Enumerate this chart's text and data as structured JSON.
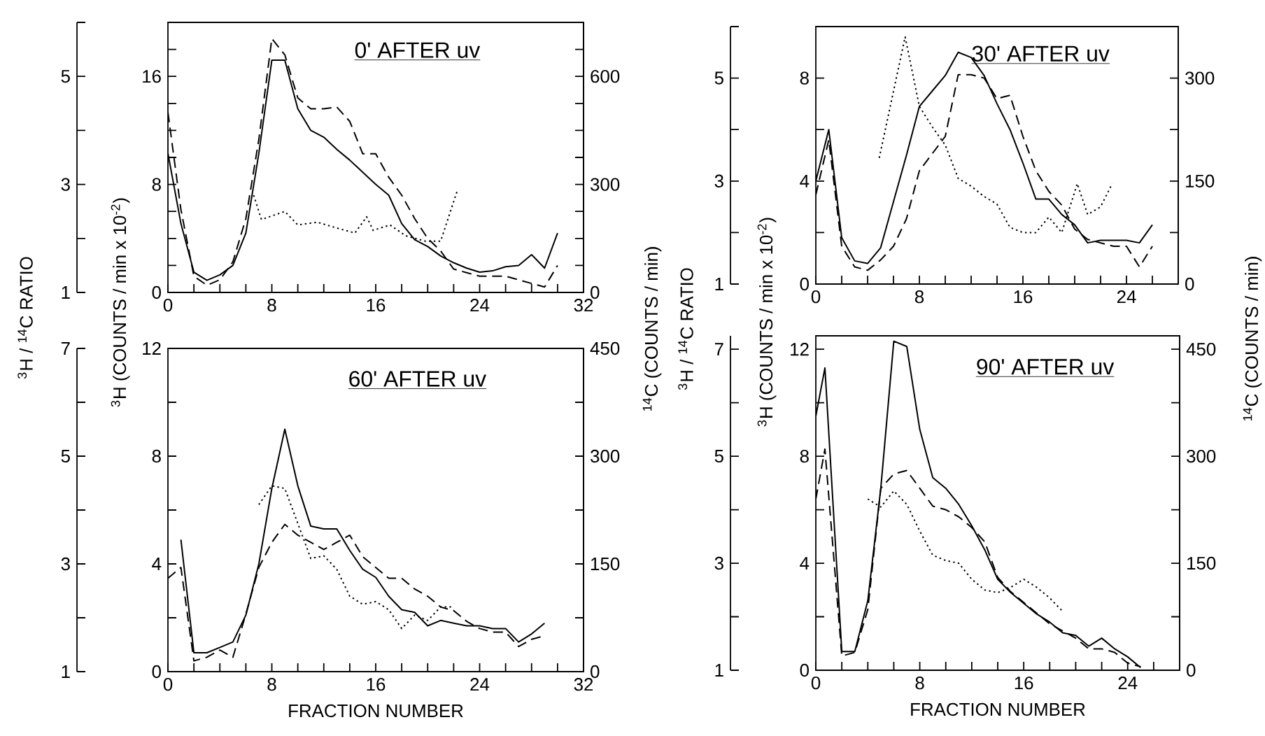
{
  "chart_data": [
    {
      "type": "line",
      "title": "0' AFTER uv",
      "ylabel": "$^{3}$H (COUNTS / min x 10$^{-2}$)",
      "y2label": "$^{14}$C (COUNTS / min)",
      "y3label": "$^{3}$H / $^{14}$C RATIO",
      "xlim": [
        0,
        32
      ],
      "xticks": [
        0,
        {
          "value": 2,
          "label": null
        },
        {
          "value": 4,
          "label": null
        },
        {
          "value": 6,
          "label": null
        },
        8,
        {
          "value": 10,
          "label": null
        },
        {
          "value": 12,
          "label": null
        },
        {
          "value": 14,
          "label": null
        },
        16,
        {
          "value": 18,
          "label": null
        },
        {
          "value": 20,
          "label": null
        },
        {
          "value": 22,
          "label": null
        },
        24,
        {
          "value": 26,
          "label": null
        },
        {
          "value": 28,
          "label": null
        },
        {
          "value": 30,
          "label": null
        },
        32
      ],
      "ylim": [
        0,
        20
      ],
      "yticks": [
        0,
        {
          "value": 2,
          "label": null
        },
        {
          "value": 4,
          "label": null
        },
        {
          "value": 6,
          "label": null
        },
        8,
        {
          "value": 10,
          "label": null
        },
        {
          "value": 12,
          "label": null
        },
        {
          "value": 14,
          "label": null
        },
        16,
        {
          "value": 18,
          "label": null
        }
      ],
      "y2lim": [
        0,
        750
      ],
      "y2ticks": [
        0,
        {
          "value": 75,
          "label": null
        },
        {
          "value": 150,
          "label": null
        },
        {
          "value": 225,
          "label": null
        },
        300,
        {
          "value": 375,
          "label": null
        },
        {
          "value": 450,
          "label": null
        },
        {
          "value": 525,
          "label": null
        },
        600,
        {
          "value": 675,
          "label": null
        }
      ],
      "y3lim": [
        1,
        6
      ],
      "y3ticks": [
        1,
        {
          "value": 2,
          "label": null
        },
        3,
        {
          "value": 4,
          "label": null
        },
        5,
        {
          "value": 6,
          "label": null
        }
      ],
      "series": [
        {
          "color": "#000000",
          "line_style": "solid",
          "axis": "y",
          "x": [
            0,
            1,
            2,
            3,
            4,
            5,
            6,
            7,
            8,
            9,
            10,
            11,
            12,
            13,
            14,
            15,
            16,
            17,
            18,
            19,
            20,
            21,
            22,
            23,
            24,
            25,
            26,
            27,
            28,
            29,
            30
          ],
          "values": [
            10.3,
            5.1,
            1.5,
            0.9,
            1.3,
            2.0,
            4.4,
            10.3,
            17.2,
            17.2,
            13.6,
            12.0,
            11.5,
            10.6,
            9.8,
            8.9,
            8.0,
            7.2,
            5.1,
            3.9,
            3.4,
            2.7,
            2.2,
            1.8,
            1.5,
            1.6,
            1.9,
            2.0,
            2.8,
            1.8,
            4.4
          ]
        },
        {
          "color": "#000000",
          "line_style": "dashed",
          "axis": "y2",
          "x": [
            0,
            1,
            2,
            3,
            4,
            5,
            6,
            7,
            8,
            9,
            10,
            11,
            12,
            13,
            14,
            15,
            16,
            17,
            18,
            19,
            20,
            21,
            22,
            23,
            24,
            25,
            26,
            27,
            28,
            29,
            30
          ],
          "values": [
            500,
            230,
            45,
            20,
            35,
            85,
            205,
            425,
            705,
            660,
            540,
            510,
            510,
            515,
            475,
            385,
            385,
            320,
            270,
            205,
            150,
            115,
            65,
            55,
            45,
            45,
            45,
            35,
            25,
            15,
            75
          ]
        },
        {
          "color": "#000000",
          "line_style": "dotted",
          "axis": "y3",
          "x": [
            6.6,
            7.2,
            9,
            10,
            11.5,
            12.9,
            14.4,
            15.3,
            15.8,
            17.1,
            18.3,
            19.8,
            21,
            22.3
          ],
          "values": [
            2.8,
            2.35,
            2.5,
            2.25,
            2.3,
            2.2,
            2.1,
            2.4,
            2.15,
            2.25,
            2.05,
            1.95,
            1.95,
            2.9
          ]
        }
      ]
    },
    {
      "type": "line",
      "title": "30' AFTER uv",
      "ylabel": "$^{3}$H (COUNTS / min x 10$^{-2}$)",
      "y2label": "$^{14}$C (COUNTS / min)",
      "y3label": "$^{3}$H / $^{14}$C RATIO",
      "xlim": [
        0,
        28
      ],
      "xticks": [
        0,
        {
          "value": 2,
          "label": null
        },
        {
          "value": 4,
          "label": null
        },
        {
          "value": 6,
          "label": null
        },
        8,
        {
          "value": 10,
          "label": null
        },
        {
          "value": 12,
          "label": null
        },
        {
          "value": 14,
          "label": null
        },
        16,
        {
          "value": 18,
          "label": null
        },
        {
          "value": 20,
          "label": null
        },
        {
          "value": 22,
          "label": null
        },
        24,
        {
          "value": 26,
          "label": null
        }
      ],
      "ylim": [
        0,
        10
      ],
      "yticks": [
        0,
        {
          "value": 2,
          "label": null
        },
        4,
        {
          "value": 6,
          "label": null
        },
        8
      ],
      "y2lim": [
        0,
        375
      ],
      "y2ticks": [
        0,
        {
          "value": 75,
          "label": null
        },
        150,
        {
          "value": 225,
          "label": null
        },
        300
      ],
      "y3lim": [
        1,
        6
      ],
      "y3ticks": [
        1,
        {
          "value": 2,
          "label": null
        },
        3,
        {
          "value": 4,
          "label": null
        },
        5,
        {
          "value": 6,
          "label": null
        }
      ],
      "series": [
        {
          "color": "#000000",
          "line_style": "solid",
          "axis": "y",
          "x": [
            0,
            1,
            2,
            3,
            4,
            5,
            6,
            7,
            8,
            9,
            10,
            11,
            12,
            13,
            14,
            15,
            16,
            17,
            18,
            19,
            20,
            21,
            22,
            23,
            24,
            25,
            26
          ],
          "values": [
            4.0,
            6.0,
            1.8,
            0.9,
            0.8,
            1.4,
            3.2,
            5.0,
            6.9,
            7.5,
            8.1,
            9.0,
            8.8,
            8.1,
            7.0,
            6.0,
            4.7,
            3.3,
            3.3,
            2.7,
            2.3,
            1.6,
            1.7,
            1.7,
            1.7,
            1.6,
            2.3
          ]
        },
        {
          "color": "#000000",
          "line_style": "dashed",
          "axis": "y2",
          "x": [
            0,
            1,
            2,
            3,
            4,
            5,
            6,
            7,
            8,
            9,
            10,
            11,
            12,
            13,
            14,
            15,
            16,
            17,
            18,
            19,
            20,
            21,
            22,
            23,
            24,
            25,
            26
          ],
          "values": [
            130,
            210,
            55,
            25,
            20,
            35,
            55,
            95,
            165,
            190,
            215,
            305,
            305,
            300,
            270,
            275,
            215,
            165,
            135,
            115,
            80,
            65,
            60,
            55,
            55,
            25,
            55
          ]
        },
        {
          "color": "#000000",
          "line_style": "dotted",
          "axis": "y3",
          "x": [
            4.9,
            6.9,
            8,
            9,
            10,
            11,
            12,
            13,
            14,
            15,
            16,
            17,
            18,
            19,
            20.2,
            21,
            22,
            22.9
          ],
          "values": [
            3.45,
            5.8,
            4.45,
            4.05,
            3.7,
            3.05,
            2.9,
            2.7,
            2.55,
            2.1,
            2.0,
            2.0,
            2.3,
            2.0,
            2.95,
            2.35,
            2.5,
            2.95
          ]
        }
      ]
    },
    {
      "type": "line",
      "title": "60' AFTER uv",
      "xlabel": "FRACTION NUMBER",
      "xlim": [
        0,
        32
      ],
      "xticks": [
        0,
        {
          "value": 2,
          "label": null
        },
        {
          "value": 4,
          "label": null
        },
        {
          "value": 6,
          "label": null
        },
        8,
        {
          "value": 10,
          "label": null
        },
        {
          "value": 12,
          "label": null
        },
        {
          "value": 14,
          "label": null
        },
        16,
        {
          "value": 18,
          "label": null
        },
        {
          "value": 20,
          "label": null
        },
        {
          "value": 22,
          "label": null
        },
        24,
        {
          "value": 26,
          "label": null
        },
        {
          "value": 28,
          "label": null
        },
        {
          "value": 30,
          "label": null
        },
        32
      ],
      "ylim": [
        0,
        12
      ],
      "yticks": [
        0,
        {
          "value": 2,
          "label": null
        },
        4,
        {
          "value": 6,
          "label": null
        },
        8,
        {
          "value": 10,
          "label": null
        },
        12
      ],
      "y2lim": [
        0,
        450
      ],
      "y2ticks": [
        0,
        {
          "value": 75,
          "label": null
        },
        150,
        {
          "value": 225,
          "label": null
        },
        300,
        {
          "value": 375,
          "label": null
        },
        450
      ],
      "y3lim": [
        1,
        7
      ],
      "y3ticks": [
        1,
        {
          "value": 2,
          "label": null
        },
        3,
        {
          "value": 4,
          "label": null
        },
        5,
        {
          "value": 6,
          "label": null
        },
        7
      ],
      "series": [
        {
          "color": "#000000",
          "line_style": "solid",
          "axis": "y",
          "x": [
            1,
            2,
            3,
            4,
            5,
            6,
            7,
            8,
            9,
            10,
            11,
            12,
            13,
            14,
            15,
            16,
            17,
            18,
            19,
            20,
            21,
            22,
            23,
            24,
            25,
            26,
            27,
            28,
            29
          ],
          "values": [
            4.9,
            0.7,
            0.7,
            0.9,
            1.1,
            2.1,
            4.0,
            6.8,
            9.0,
            6.9,
            5.4,
            5.3,
            5.3,
            4.5,
            3.8,
            3.5,
            2.8,
            2.3,
            2.2,
            1.7,
            1.9,
            1.8,
            1.7,
            1.7,
            1.6,
            1.6,
            1.1,
            1.4,
            1.8
          ]
        },
        {
          "color": "#000000",
          "line_style": "dashed",
          "axis": "y2",
          "x": [
            0,
            1,
            2,
            3,
            4,
            5,
            6,
            7,
            8,
            9,
            10,
            11,
            12,
            13,
            14,
            15,
            16,
            17,
            18,
            19,
            20,
            21,
            22,
            23,
            24,
            25,
            26,
            27,
            28,
            29
          ],
          "values": [
            130,
            145,
            15,
            20,
            30,
            20,
            80,
            145,
            180,
            205,
            190,
            180,
            170,
            180,
            190,
            160,
            145,
            130,
            130,
            115,
            105,
            90,
            85,
            70,
            60,
            55,
            55,
            35,
            45,
            50
          ]
        },
        {
          "color": "#000000",
          "line_style": "dotted",
          "axis": "y3",
          "x": [
            7,
            8,
            9,
            10,
            11,
            12,
            13,
            14,
            15,
            16,
            17,
            18,
            19,
            20,
            21,
            22
          ],
          "values": [
            4.1,
            4.45,
            4.4,
            3.75,
            3.1,
            3.15,
            2.9,
            2.4,
            2.25,
            2.3,
            2.15,
            1.8,
            2.05,
            1.95,
            2.2,
            2.2
          ]
        }
      ]
    },
    {
      "type": "line",
      "title": "90' AFTER uv",
      "xlabel": "FRACTION NUMBER",
      "xlim": [
        0,
        28
      ],
      "xticks": [
        0,
        {
          "value": 2,
          "label": null
        },
        {
          "value": 4,
          "label": null
        },
        {
          "value": 6,
          "label": null
        },
        8,
        {
          "value": 10,
          "label": null
        },
        {
          "value": 12,
          "label": null
        },
        {
          "value": 14,
          "label": null
        },
        16,
        {
          "value": 18,
          "label": null
        },
        {
          "value": 20,
          "label": null
        },
        {
          "value": 22,
          "label": null
        },
        24,
        {
          "value": 26,
          "label": null
        }
      ],
      "ylim": [
        0,
        12.5
      ],
      "yticks": [
        0,
        {
          "value": 2,
          "label": null
        },
        4,
        {
          "value": 6,
          "label": null
        },
        8,
        {
          "value": 10,
          "label": null
        },
        12
      ],
      "y2lim": [
        0,
        468.75
      ],
      "y2ticks": [
        0,
        {
          "value": 75,
          "label": null
        },
        150,
        {
          "value": 225,
          "label": null
        },
        300,
        {
          "value": 375,
          "label": null
        },
        450
      ],
      "y3lim": [
        1,
        7.25
      ],
      "y3ticks": [
        1,
        {
          "value": 2,
          "label": null
        },
        3,
        {
          "value": 4,
          "label": null
        },
        5,
        {
          "value": 6,
          "label": null
        },
        7
      ],
      "series": [
        {
          "color": "#000000",
          "line_style": "solid",
          "axis": "y",
          "x": [
            0,
            0.7,
            2,
            3,
            4,
            5,
            6,
            7,
            8,
            9,
            10,
            11,
            12,
            13,
            14,
            15,
            16,
            17,
            18,
            19,
            20,
            21,
            22,
            23,
            24,
            25
          ],
          "values": [
            9.5,
            11.3,
            0.7,
            0.7,
            2.6,
            6.8,
            12.3,
            12.1,
            9.0,
            7.2,
            6.8,
            6.2,
            5.4,
            4.5,
            3.4,
            2.9,
            2.5,
            2.1,
            1.8,
            1.4,
            1.3,
            0.9,
            1.2,
            0.8,
            0.5,
            0.1
          ]
        },
        {
          "color": "#000000",
          "line_style": "dashed",
          "axis": "y2",
          "x": [
            0,
            0.7,
            2,
            3,
            4,
            5,
            6,
            7,
            8,
            9,
            10,
            11,
            12,
            13,
            14,
            15,
            16,
            17,
            18,
            19,
            20,
            21,
            22,
            23,
            24,
            25
          ],
          "values": [
            240,
            310,
            20,
            25,
            85,
            255,
            275,
            280,
            255,
            230,
            225,
            215,
            200,
            180,
            130,
            110,
            95,
            80,
            65,
            55,
            45,
            30,
            30,
            25,
            10,
            5
          ]
        },
        {
          "color": "#000000",
          "line_style": "dotted",
          "axis": "y3",
          "x": [
            4,
            5,
            6,
            7,
            8,
            9,
            10,
            11,
            12,
            13,
            14,
            15,
            16,
            17,
            18,
            19
          ],
          "values": [
            4.2,
            4.05,
            4.35,
            4.1,
            3.6,
            3.15,
            3.05,
            3.0,
            2.7,
            2.5,
            2.45,
            2.55,
            2.7,
            2.55,
            2.35,
            2.1
          ]
        }
      ]
    }
  ]
}
